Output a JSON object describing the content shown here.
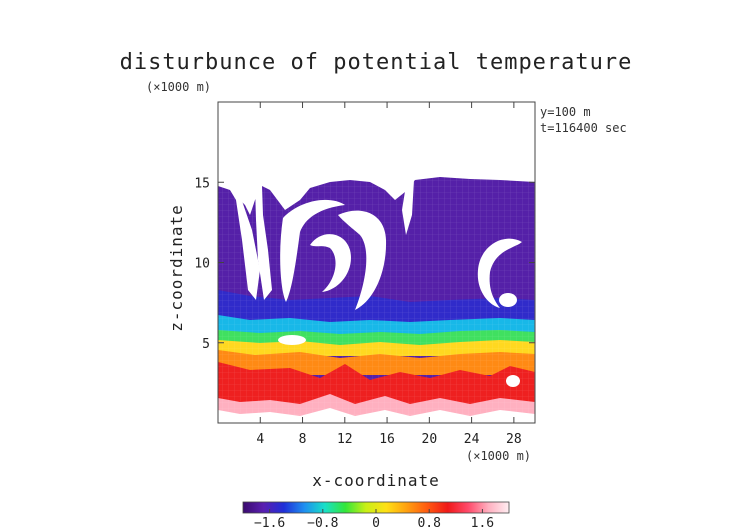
{
  "chart_data": {
    "type": "contour",
    "title": "disturbunce of potential temperature",
    "y_unit_label": "(×1000 m)",
    "x_unit_label": "(×1000 m)",
    "xlabel": "x-coordinate",
    "ylabel": "z-coordinate",
    "annotations": [
      "y=100 m",
      "t=116400 sec"
    ],
    "xlim": [
      0,
      30
    ],
    "ylim": [
      0,
      20
    ],
    "x_ticks": [
      4,
      8,
      12,
      16,
      20,
      24,
      28
    ],
    "y_ticks": [
      5,
      10,
      15
    ],
    "colorbar": {
      "min": -2.0,
      "max": 2.0,
      "ticks": [
        {
          "value": -1.6,
          "label": "−1.6"
        },
        {
          "value": -0.8,
          "label": "−0.8"
        },
        {
          "value": 0,
          "label": "0"
        },
        {
          "value": 0.8,
          "label": "0.8"
        },
        {
          "value": 1.6,
          "label": "1.6"
        }
      ],
      "colors": [
        "#3a0a6e",
        "#5a1fb0",
        "#1f2fd8",
        "#1f8ff0",
        "#18e0c8",
        "#33e63a",
        "#c8f016",
        "#ffe015",
        "#ffa010",
        "#ff5a10",
        "#f01818",
        "#ff4a6a",
        "#ffb0c0",
        "#ffeef2"
      ]
    }
  }
}
